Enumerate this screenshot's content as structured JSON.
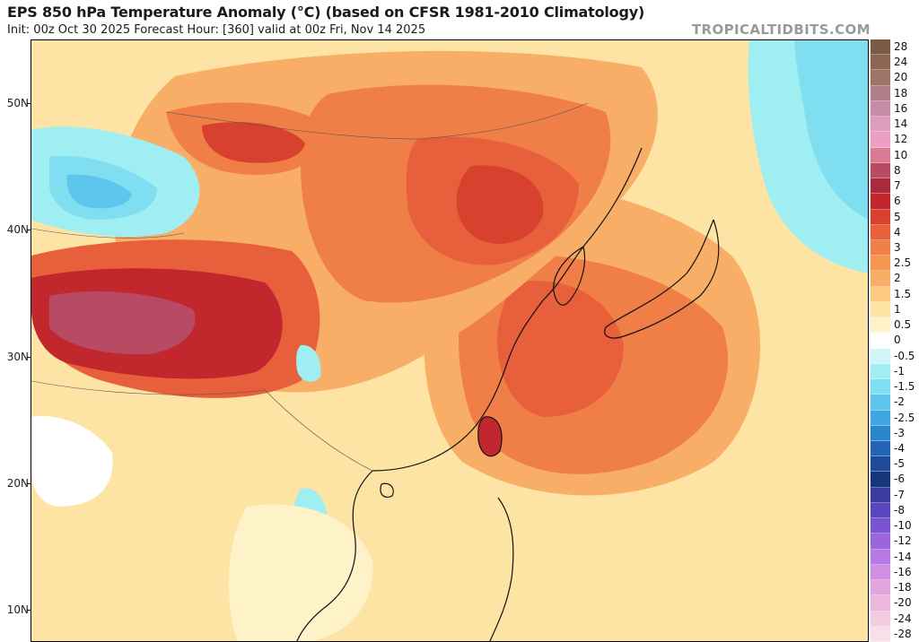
{
  "header": {
    "title": "EPS 850 hPa Temperature Anomaly (°C) (based on CFSR 1981-2010 Climatology)",
    "subtitle": "Init: 00z Oct 30 2025   Forecast Hour: [360]   valid at 00z Fri, Nov 14 2025",
    "watermark": "TROPICALTIDBITS.COM"
  },
  "map": {
    "latitude_labels": [
      "50N",
      "40N",
      "30N",
      "20N",
      "10N"
    ],
    "latitudes": [
      50,
      40,
      30,
      20,
      10
    ]
  },
  "colorbar": {
    "entries": [
      {
        "label": "28",
        "color": "#7a5a43"
      },
      {
        "label": "24",
        "color": "#8a6653"
      },
      {
        "label": "20",
        "color": "#9c7468"
      },
      {
        "label": "18",
        "color": "#b0808a"
      },
      {
        "label": "16",
        "color": "#c68ba7"
      },
      {
        "label": "14",
        "color": "#dd9bbd"
      },
      {
        "label": "12",
        "color": "#ee9ec5"
      },
      {
        "label": "10",
        "color": "#d97a92"
      },
      {
        "label": "8",
        "color": "#b84a63"
      },
      {
        "label": "7",
        "color": "#a9293d"
      },
      {
        "label": "6",
        "color": "#c1272d"
      },
      {
        "label": "5",
        "color": "#d9412f"
      },
      {
        "label": "4",
        "color": "#e8603b"
      },
      {
        "label": "3",
        "color": "#f07e47"
      },
      {
        "label": "2.5",
        "color": "#f59653"
      },
      {
        "label": "2",
        "color": "#f8ae66"
      },
      {
        "label": "1.5",
        "color": "#fbc982"
      },
      {
        "label": "1",
        "color": "#fde3a4"
      },
      {
        "label": "0.5",
        "color": "#fef2c8"
      },
      {
        "label": "0",
        "color": "#ffffff"
      },
      {
        "label": "-0.5",
        "color": "#d2f5f7"
      },
      {
        "label": "-1",
        "color": "#9eeef2"
      },
      {
        "label": "-1.5",
        "color": "#7fdff0"
      },
      {
        "label": "-2",
        "color": "#5ec6ec"
      },
      {
        "label": "-2.5",
        "color": "#3ea6e0"
      },
      {
        "label": "-3",
        "color": "#2c84cf"
      },
      {
        "label": "-4",
        "color": "#2364b6"
      },
      {
        "label": "-5",
        "color": "#1d4a99"
      },
      {
        "label": "-6",
        "color": "#17357a"
      },
      {
        "label": "-7",
        "color": "#3a3aa0"
      },
      {
        "label": "-8",
        "color": "#5a46bd"
      },
      {
        "label": "-10",
        "color": "#7a55d2"
      },
      {
        "label": "-12",
        "color": "#9b66dd"
      },
      {
        "label": "-14",
        "color": "#b979e3"
      },
      {
        "label": "-16",
        "color": "#d08fe0"
      },
      {
        "label": "-18",
        "color": "#e2a5de"
      },
      {
        "label": "-20",
        "color": "#ecb9dc"
      },
      {
        "label": "-24",
        "color": "#f2cde0"
      },
      {
        "label": "-28",
        "color": "#f7e0ea"
      }
    ]
  },
  "palette": {
    "ocean_light": "#fde3a4",
    "ocean_mid": "#f8ae66",
    "warm": "#f07e47",
    "warmer": "#e8603b",
    "hot": "#d9412f",
    "hotter": "#c1272d",
    "extreme": "#a9293d",
    "plateau": "#b84a63",
    "cool_light": "#9eeef2",
    "cool_mid": "#7fdff0",
    "cool": "#5ec6ec",
    "neutral": "#ffffff",
    "pale": "#fef2c8"
  }
}
